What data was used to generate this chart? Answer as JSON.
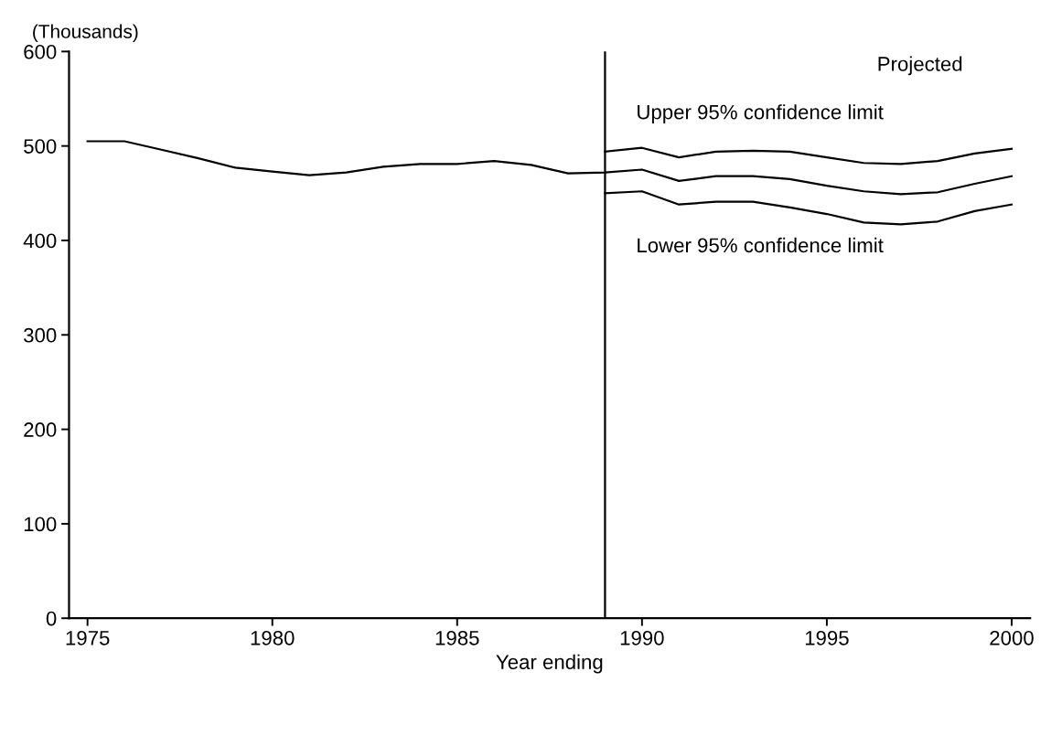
{
  "chart_data": {
    "type": "line",
    "ylabel": "(Thousands)",
    "xlabel": "Year ending",
    "series": [
      {
        "color": "#000000",
        "x": [
          1975,
          1976,
          1977,
          1978,
          1979,
          1980,
          1981,
          1982,
          1983,
          1984,
          1985,
          1986,
          1987,
          1988,
          1989,
          1990,
          1991,
          1992,
          1993,
          1994,
          1995,
          1996,
          1997,
          1998,
          1999,
          2000
        ],
        "values": [
          505,
          505,
          496,
          487,
          477,
          473,
          469,
          472,
          478,
          481,
          481,
          484,
          480,
          471,
          472,
          475,
          463,
          468,
          468,
          465,
          458,
          452,
          449,
          451,
          460,
          468
        ]
      },
      {
        "color": "#000000",
        "x": [
          1989,
          1990,
          1991,
          1992,
          1993,
          1994,
          1995,
          1996,
          1997,
          1998,
          1999,
          2000
        ],
        "values": [
          494,
          498,
          488,
          494,
          495,
          494,
          488,
          482,
          481,
          484,
          492,
          497
        ]
      },
      {
        "color": "#000000",
        "x": [
          1989,
          1990,
          1991,
          1992,
          1993,
          1994,
          1995,
          1996,
          1997,
          1998,
          1999,
          2000
        ],
        "values": [
          450,
          452,
          438,
          441,
          441,
          435,
          428,
          419,
          417,
          420,
          431,
          438
        ]
      }
    ],
    "ref_lines": [
      {
        "axis": "x",
        "value": 1989,
        "color": "#000000"
      }
    ],
    "annotations": [
      "Projected",
      "Upper 95% confidence limit",
      "Lower 95% confidence limit"
    ],
    "xlim": [
      1974.5,
      2000.5
    ],
    "ylim": [
      0,
      600
    ],
    "xticks": [
      1975,
      1980,
      1985,
      1990,
      1995,
      2000
    ],
    "yticks": [
      0,
      100,
      200,
      300,
      400,
      500,
      600
    ],
    "grid": false,
    "legend": false,
    "marker": "none",
    "line_style": "solid"
  }
}
